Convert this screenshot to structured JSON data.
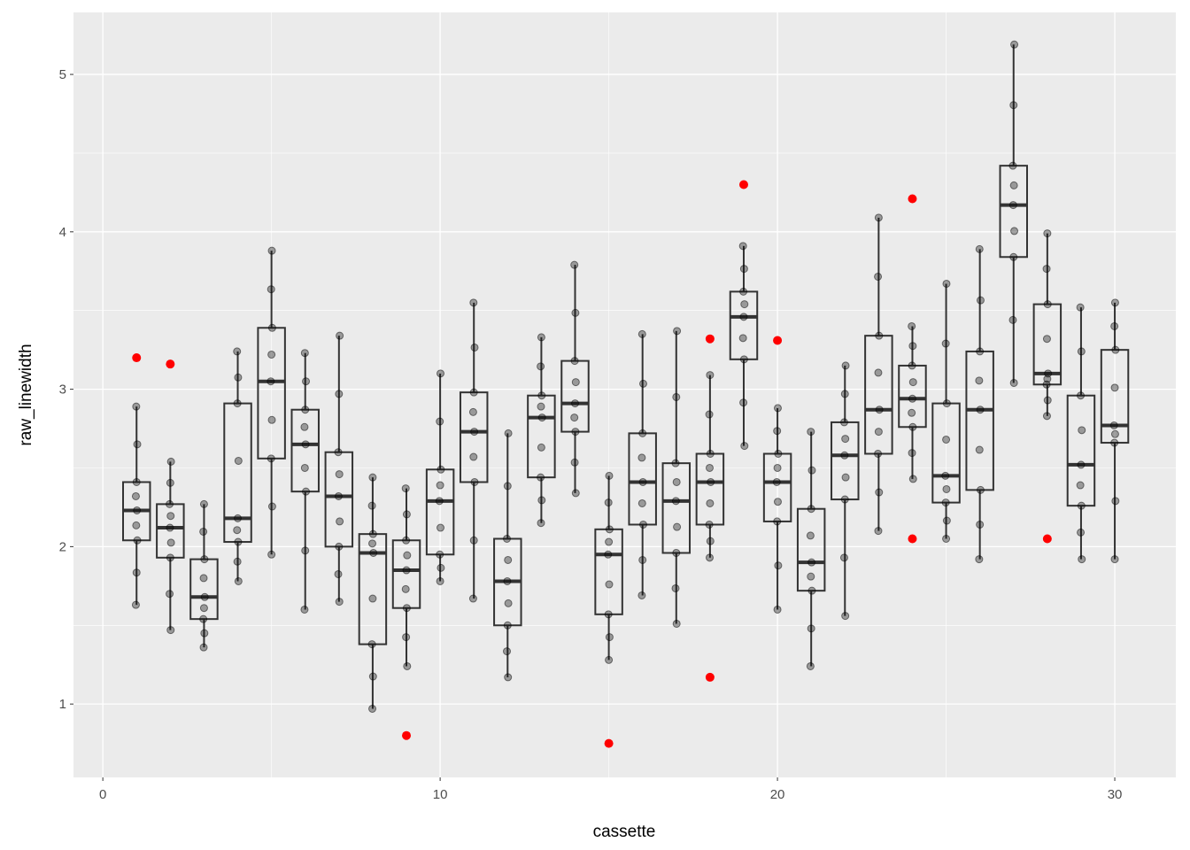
{
  "chart_data": {
    "type": "boxplot",
    "title": "",
    "xlabel": "cassette",
    "ylabel": "raw_linewidth",
    "xlim": [
      -0.87,
      31.81
    ],
    "ylim": [
      0.534,
      5.394
    ],
    "xticks": [
      0,
      10,
      20,
      30
    ],
    "yticks": [
      1,
      2,
      3,
      4,
      5
    ],
    "grid": true,
    "outlier_color": "#FF0000",
    "boxes": [
      {
        "x": 1,
        "lo": 1.63,
        "q1": 2.04,
        "med": 2.23,
        "q3": 2.41,
        "hi": 2.89,
        "outliers": [
          3.2
        ]
      },
      {
        "x": 2,
        "lo": 1.47,
        "q1": 1.93,
        "med": 2.12,
        "q3": 2.27,
        "hi": 2.54,
        "outliers": [
          3.16
        ]
      },
      {
        "x": 3,
        "lo": 1.36,
        "q1": 1.54,
        "med": 1.68,
        "q3": 1.92,
        "hi": 2.27,
        "outliers": []
      },
      {
        "x": 4,
        "lo": 1.78,
        "q1": 2.03,
        "med": 2.18,
        "q3": 2.91,
        "hi": 3.24,
        "outliers": []
      },
      {
        "x": 5,
        "lo": 1.95,
        "q1": 2.56,
        "med": 3.05,
        "q3": 3.39,
        "hi": 3.88,
        "outliers": []
      },
      {
        "x": 6,
        "lo": 1.6,
        "q1": 2.35,
        "med": 2.65,
        "q3": 2.87,
        "hi": 3.23,
        "outliers": []
      },
      {
        "x": 7,
        "lo": 1.65,
        "q1": 2.0,
        "med": 2.32,
        "q3": 2.6,
        "hi": 3.34,
        "outliers": []
      },
      {
        "x": 8,
        "lo": 0.97,
        "q1": 1.38,
        "med": 1.96,
        "q3": 2.08,
        "hi": 2.44,
        "outliers": []
      },
      {
        "x": 9,
        "lo": 1.24,
        "q1": 1.61,
        "med": 1.85,
        "q3": 2.04,
        "hi": 2.37,
        "outliers": [
          0.8
        ]
      },
      {
        "x": 10,
        "lo": 1.78,
        "q1": 1.95,
        "med": 2.29,
        "q3": 2.49,
        "hi": 3.1,
        "outliers": []
      },
      {
        "x": 11,
        "lo": 1.67,
        "q1": 2.41,
        "med": 2.73,
        "q3": 2.98,
        "hi": 3.55,
        "outliers": []
      },
      {
        "x": 12,
        "lo": 1.17,
        "q1": 1.5,
        "med": 1.78,
        "q3": 2.05,
        "hi": 2.72,
        "outliers": []
      },
      {
        "x": 13,
        "lo": 2.15,
        "q1": 2.44,
        "med": 2.82,
        "q3": 2.96,
        "hi": 3.33,
        "outliers": []
      },
      {
        "x": 14,
        "lo": 2.34,
        "q1": 2.73,
        "med": 2.91,
        "q3": 3.18,
        "hi": 3.79,
        "outliers": []
      },
      {
        "x": 15,
        "lo": 1.28,
        "q1": 1.57,
        "med": 1.95,
        "q3": 2.11,
        "hi": 2.45,
        "outliers": [
          0.75
        ]
      },
      {
        "x": 16,
        "lo": 1.69,
        "q1": 2.14,
        "med": 2.41,
        "q3": 2.72,
        "hi": 3.35,
        "outliers": []
      },
      {
        "x": 17,
        "lo": 1.51,
        "q1": 1.96,
        "med": 2.29,
        "q3": 2.53,
        "hi": 3.37,
        "outliers": []
      },
      {
        "x": 18,
        "lo": 1.93,
        "q1": 2.14,
        "med": 2.41,
        "q3": 2.59,
        "hi": 3.09,
        "outliers": [
          3.32,
          1.17
        ]
      },
      {
        "x": 19,
        "lo": 2.64,
        "q1": 3.19,
        "med": 3.46,
        "q3": 3.62,
        "hi": 3.91,
        "outliers": [
          4.3
        ]
      },
      {
        "x": 20,
        "lo": 1.6,
        "q1": 2.16,
        "med": 2.41,
        "q3": 2.59,
        "hi": 2.88,
        "outliers": [
          3.31
        ]
      },
      {
        "x": 21,
        "lo": 1.24,
        "q1": 1.72,
        "med": 1.9,
        "q3": 2.24,
        "hi": 2.73,
        "outliers": []
      },
      {
        "x": 22,
        "lo": 1.56,
        "q1": 2.3,
        "med": 2.58,
        "q3": 2.79,
        "hi": 3.15,
        "outliers": []
      },
      {
        "x": 23,
        "lo": 2.1,
        "q1": 2.59,
        "med": 2.87,
        "q3": 3.34,
        "hi": 4.09,
        "outliers": []
      },
      {
        "x": 24,
        "lo": 2.43,
        "q1": 2.76,
        "med": 2.94,
        "q3": 3.15,
        "hi": 3.4,
        "outliers": [
          4.21,
          2.05
        ]
      },
      {
        "x": 25,
        "lo": 2.05,
        "q1": 2.28,
        "med": 2.45,
        "q3": 2.91,
        "hi": 3.67,
        "outliers": []
      },
      {
        "x": 26,
        "lo": 1.92,
        "q1": 2.36,
        "med": 2.87,
        "q3": 3.24,
        "hi": 3.89,
        "outliers": []
      },
      {
        "x": 27,
        "lo": 3.04,
        "q1": 3.84,
        "med": 4.17,
        "q3": 4.42,
        "hi": 5.19,
        "outliers": []
      },
      {
        "x": 28,
        "lo": 2.83,
        "q1": 3.03,
        "med": 3.1,
        "q3": 3.54,
        "hi": 3.99,
        "outliers": [
          2.05
        ]
      },
      {
        "x": 29,
        "lo": 1.92,
        "q1": 2.26,
        "med": 2.52,
        "q3": 2.96,
        "hi": 3.52,
        "outliers": []
      },
      {
        "x": 30,
        "lo": 1.92,
        "q1": 2.66,
        "med": 2.77,
        "q3": 3.25,
        "hi": 3.55,
        "outliers": []
      }
    ]
  }
}
